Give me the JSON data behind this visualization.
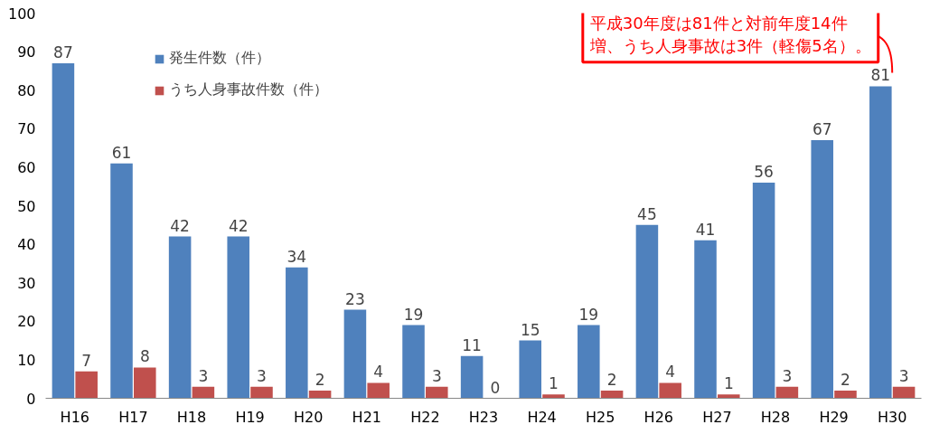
{
  "chart_data": {
    "type": "bar",
    "categories": [
      "H16",
      "H17",
      "H18",
      "H19",
      "H20",
      "H21",
      "H22",
      "H23",
      "H24",
      "H25",
      "H26",
      "H27",
      "H28",
      "H29",
      "H30"
    ],
    "series": [
      {
        "name": "発生件数（件）",
        "color": "#4f81bd",
        "values": [
          87,
          61,
          42,
          42,
          34,
          23,
          19,
          11,
          15,
          19,
          45,
          41,
          56,
          67,
          81
        ]
      },
      {
        "name": "うち人身事故件数（件）",
        "color": "#c0504d",
        "values": [
          7,
          8,
          3,
          3,
          2,
          4,
          3,
          0,
          1,
          2,
          4,
          1,
          3,
          2,
          3
        ]
      }
    ],
    "ylim": [
      0,
      100
    ],
    "yticks": [
      0,
      10,
      20,
      30,
      40,
      50,
      60,
      70,
      80,
      90,
      100
    ],
    "grid": false,
    "legend": "top left",
    "data_labels": true,
    "annotations": [
      {
        "text": "平成30年度は81件と対前年度14件増、うち人身事故は3件（軽傷5名）。",
        "x": "H30",
        "y": 81
      }
    ]
  }
}
